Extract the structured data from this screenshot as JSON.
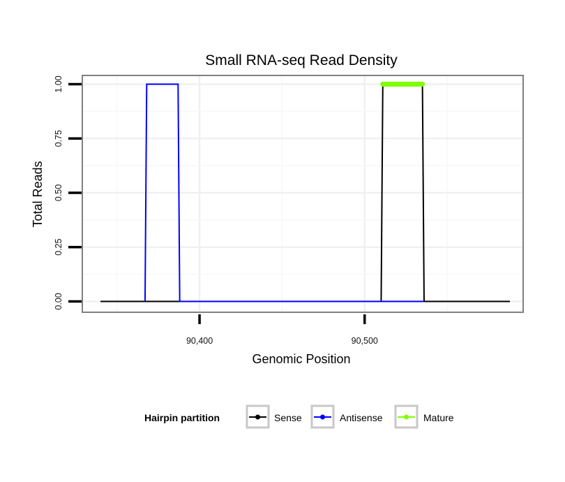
{
  "chart_data": {
    "type": "line",
    "title": "Small RNA-seq Read Density",
    "xlabel": "Genomic Position",
    "ylabel": "Total Reads",
    "xlim": [
      90329,
      90596
    ],
    "ylim": [
      -0.05,
      1.04
    ],
    "x_ticks": [
      90400,
      90500
    ],
    "x_tick_labels": [
      "90,400",
      "90,500"
    ],
    "y_ticks": [
      0,
      0.25,
      0.5,
      0.75,
      1
    ],
    "y_tick_labels": [
      "0.00",
      "0.25",
      "0.50",
      "0.75",
      "1.00"
    ],
    "grid": true,
    "legend": {
      "title": "Hairpin partition",
      "position": "bottom",
      "entries": [
        "Sense",
        "Antisense",
        "Mature"
      ]
    },
    "colors": {
      "Sense": "#000000",
      "Antisense": "#0000ff",
      "Mature": "#7fff00"
    },
    "series": [
      {
        "name": "Sense",
        "x": [
          90340,
          90510,
          90511,
          90535,
          90536,
          90588
        ],
        "y": [
          0,
          0,
          1,
          1,
          0,
          0
        ]
      },
      {
        "name": "Antisense",
        "x": [
          90367,
          90368,
          90387,
          90388,
          90510,
          90536
        ],
        "y": [
          0,
          1,
          1,
          0,
          0,
          0
        ]
      },
      {
        "name": "Mature",
        "x": [
          90511,
          90535
        ],
        "y": [
          1,
          1
        ]
      }
    ]
  }
}
